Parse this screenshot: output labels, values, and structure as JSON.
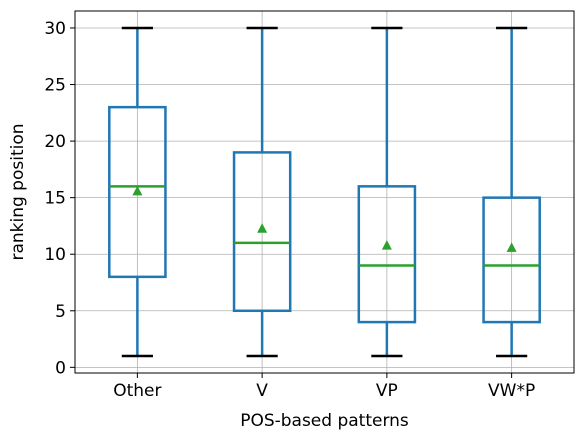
{
  "chart_data": {
    "type": "box",
    "xlabel": "POS-based patterns",
    "ylabel": "ranking position",
    "categories": [
      "Other",
      "V",
      "VP",
      "VW*P"
    ],
    "boxes": [
      {
        "category": "Other",
        "whisker_low": 1,
        "q1": 8,
        "median": 16,
        "q3": 23,
        "whisker_high": 30,
        "mean": 15.6
      },
      {
        "category": "V",
        "whisker_low": 1,
        "q1": 5,
        "median": 11,
        "q3": 19,
        "whisker_high": 30,
        "mean": 12.3
      },
      {
        "category": "VP",
        "whisker_low": 1,
        "q1": 4,
        "median": 9,
        "q3": 16,
        "whisker_high": 30,
        "mean": 10.8
      },
      {
        "category": "VW*P",
        "whisker_low": 1,
        "q1": 4,
        "median": 9,
        "q3": 15,
        "whisker_high": 30,
        "mean": 10.6
      }
    ],
    "ylim": [
      -0.5,
      31.5
    ],
    "yticks": [
      "0",
      "5",
      "10",
      "15",
      "20",
      "25",
      "30"
    ],
    "grid": true,
    "colors": {
      "box": "#1f77b4",
      "median": "#2ca02c",
      "mean_marker": "#2ca02c",
      "whisker_cap": "#000000",
      "grid": "#b0b0b0"
    }
  }
}
